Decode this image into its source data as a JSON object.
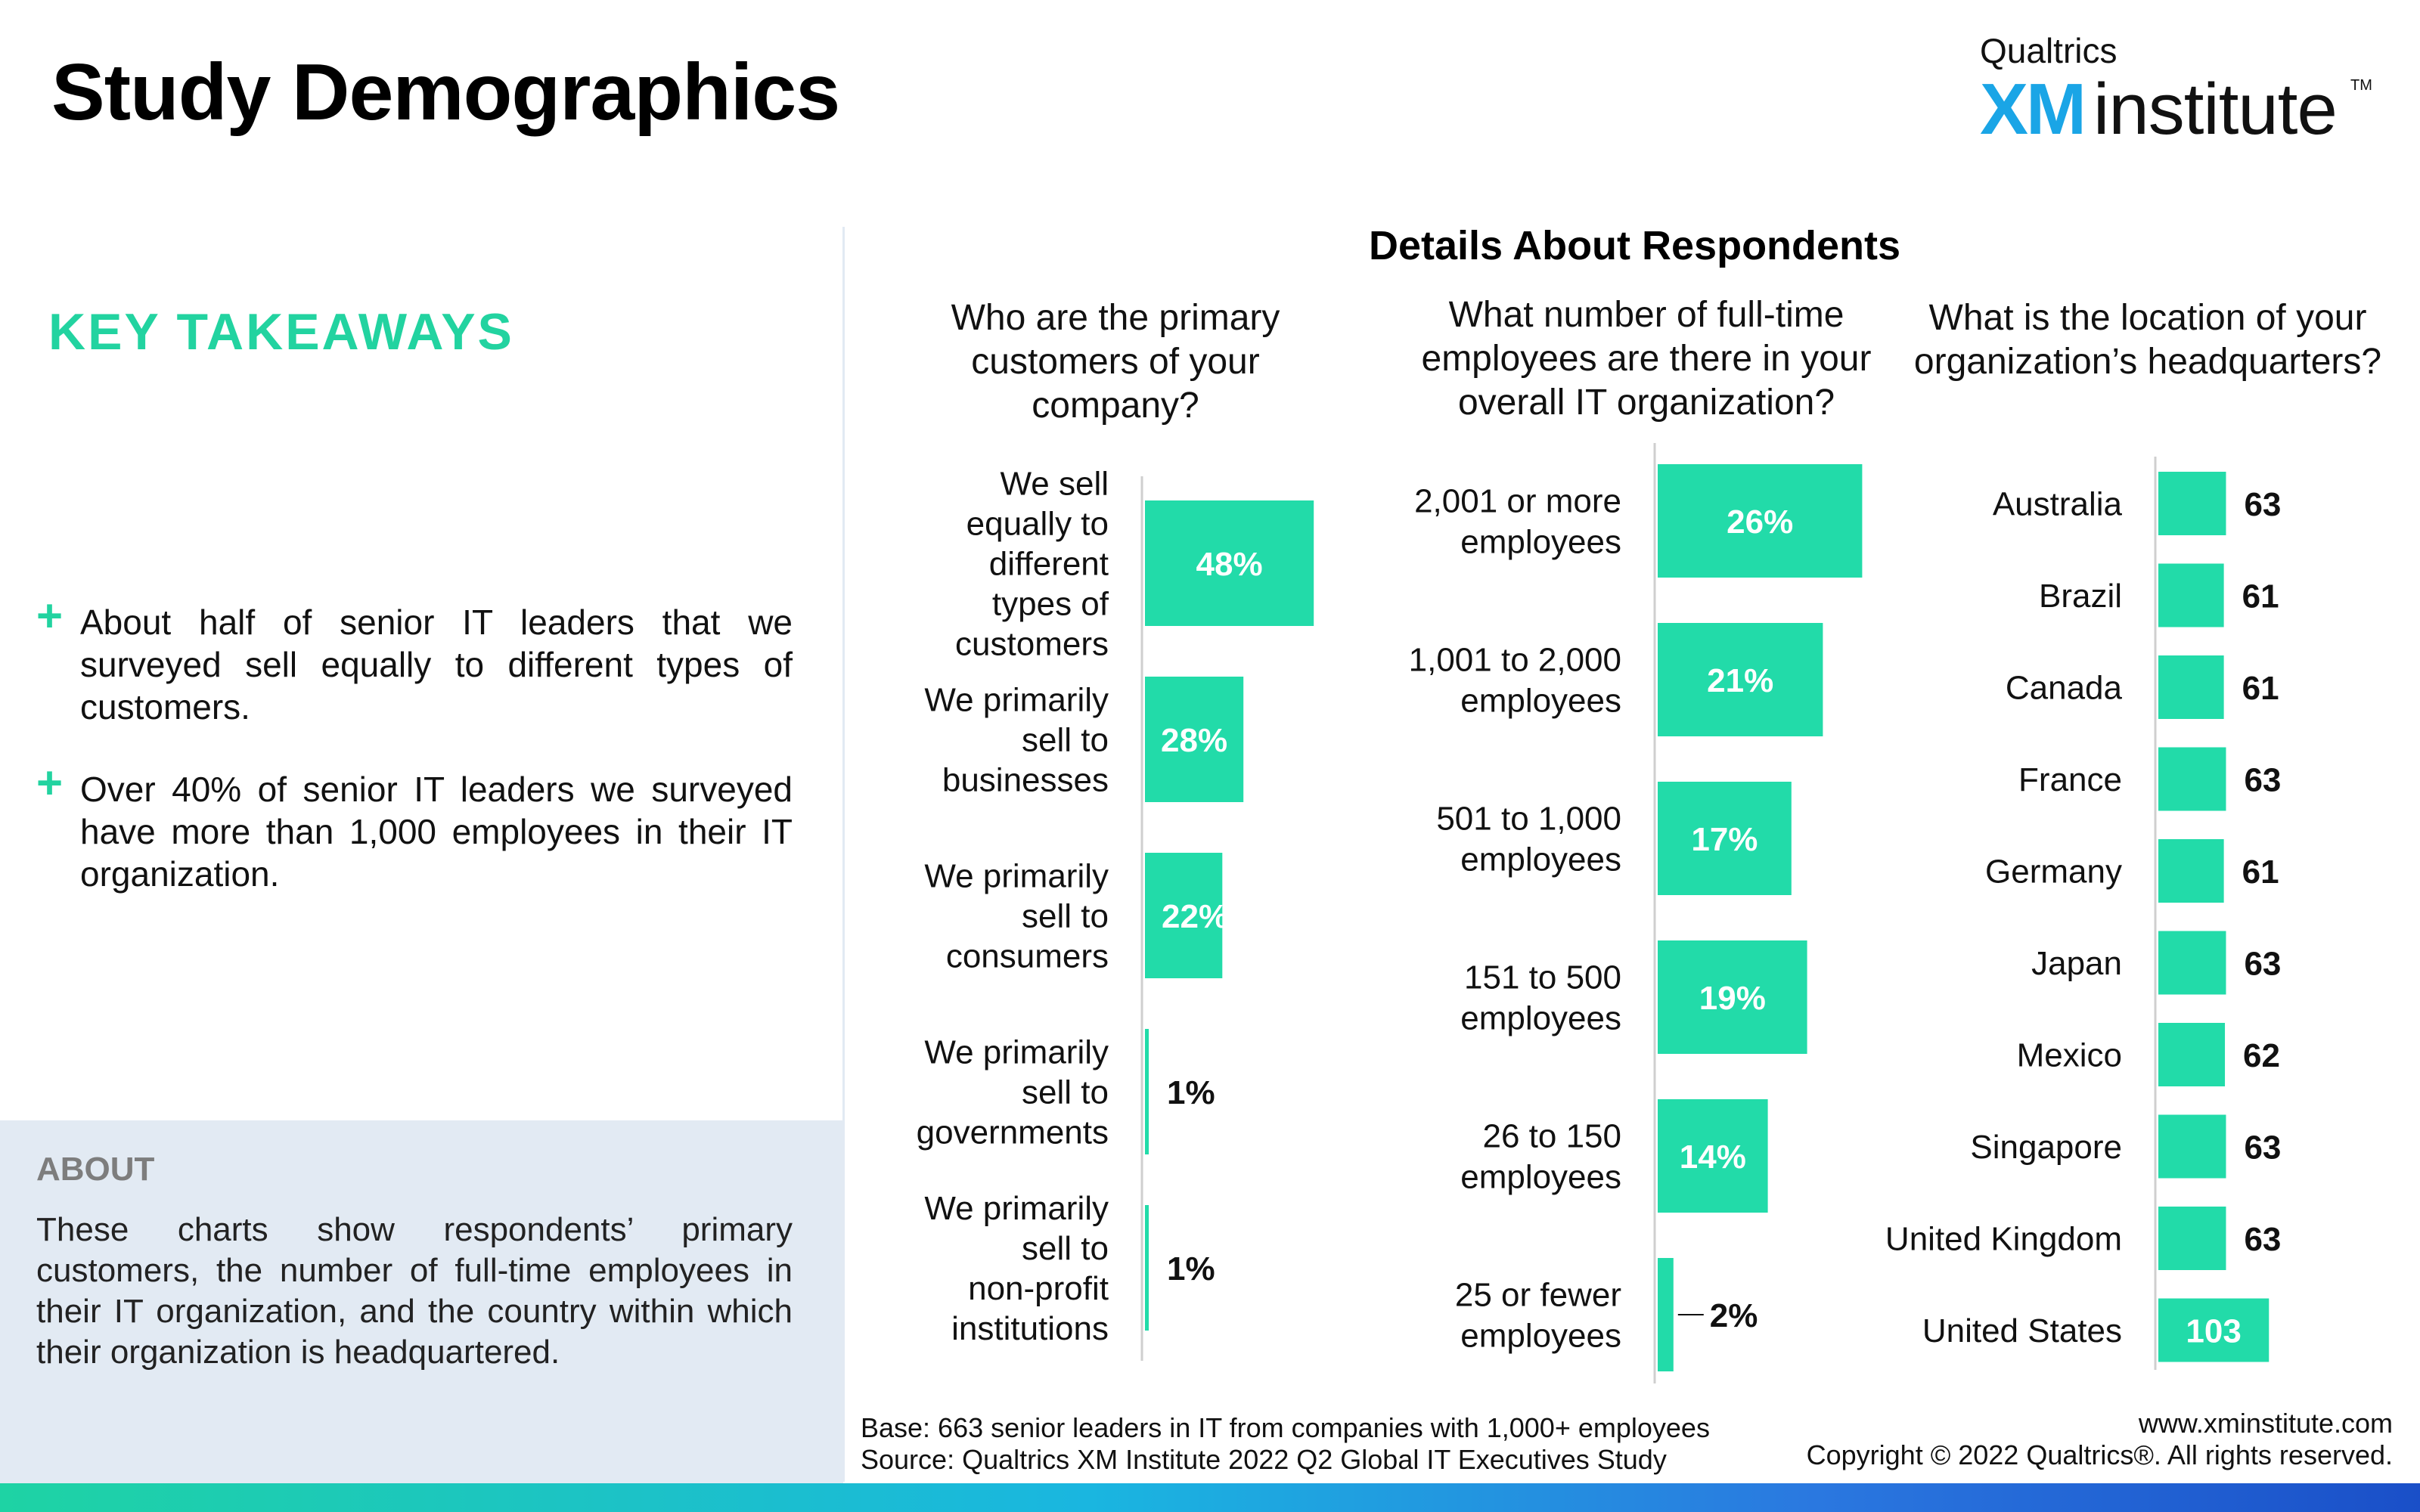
{
  "header": {
    "title": "Study Demographics",
    "logo_top": "Qualtrics",
    "logo_xm": "XM",
    "logo_institute": "institute",
    "logo_tm": "TM"
  },
  "takeaways": {
    "heading": "KEY TAKEAWAYS",
    "items": [
      "About half of senior IT leaders that we surveyed sell equally to different types of customers.",
      "Over 40% of senior IT leaders we surveyed have more than 1,000 employees in their IT organization."
    ]
  },
  "about": {
    "heading": "ABOUT",
    "text": "These charts show respondents’ primary customers, the number of full-time employees in their IT organization, and the country within which their organization is headquartered."
  },
  "details_title": "Details About Respondents",
  "footer": {
    "base": "Base: 663 senior leaders in IT from companies with 1,000+ employees",
    "source": "Source: Qualtrics XM Institute 2022 Q2 Global IT Executives Study",
    "website": "www.xminstitute.com",
    "copyright": "Copyright © 2022 Qualtrics®. All rights reserved."
  },
  "colors": {
    "accent": "#22d3a0",
    "bar": "#22dba9",
    "axis": "#cfcfcf"
  },
  "chart_data": [
    {
      "type": "bar",
      "orientation": "horizontal",
      "title": "Who are the primary customers of your company?",
      "categories": [
        "We sell equally to different types of customers",
        "We primarily sell to businesses",
        "We primarily sell to consumers",
        "We primarily sell to governments",
        "We primarily sell to non-profit institutions"
      ],
      "values": [
        48,
        28,
        22,
        1,
        1
      ],
      "value_labels": [
        "48%",
        "28%",
        "22%",
        "1%",
        "1%"
      ],
      "unit": "%",
      "xlim": [
        0,
        50
      ]
    },
    {
      "type": "bar",
      "orientation": "horizontal",
      "title": "What number of full-time employees are there in your overall IT organization?",
      "categories": [
        "2,001 or more employees",
        "1,001 to 2,000 employees",
        "501 to 1,000 employees",
        "151 to 500 employees",
        "26 to 150 employees",
        "25 or fewer employees"
      ],
      "values": [
        26,
        21,
        17,
        19,
        14,
        2
      ],
      "value_labels": [
        "26%",
        "21%",
        "17%",
        "19%",
        "14%",
        "2%"
      ],
      "unit": "%",
      "xlim": [
        0,
        30
      ]
    },
    {
      "type": "bar",
      "orientation": "horizontal",
      "title": "What is the location of your organization’s headquarters?",
      "categories": [
        "Australia",
        "Brazil",
        "Canada",
        "France",
        "Germany",
        "Japan",
        "Mexico",
        "Singapore",
        "United Kingdom",
        "United States"
      ],
      "values": [
        63,
        61,
        61,
        63,
        61,
        63,
        62,
        63,
        63,
        103
      ],
      "value_labels": [
        "63",
        "61",
        "61",
        "63",
        "61",
        "63",
        "62",
        "63",
        "63",
        "103"
      ],
      "unit": "respondents",
      "xlim": [
        0,
        110
      ]
    }
  ]
}
